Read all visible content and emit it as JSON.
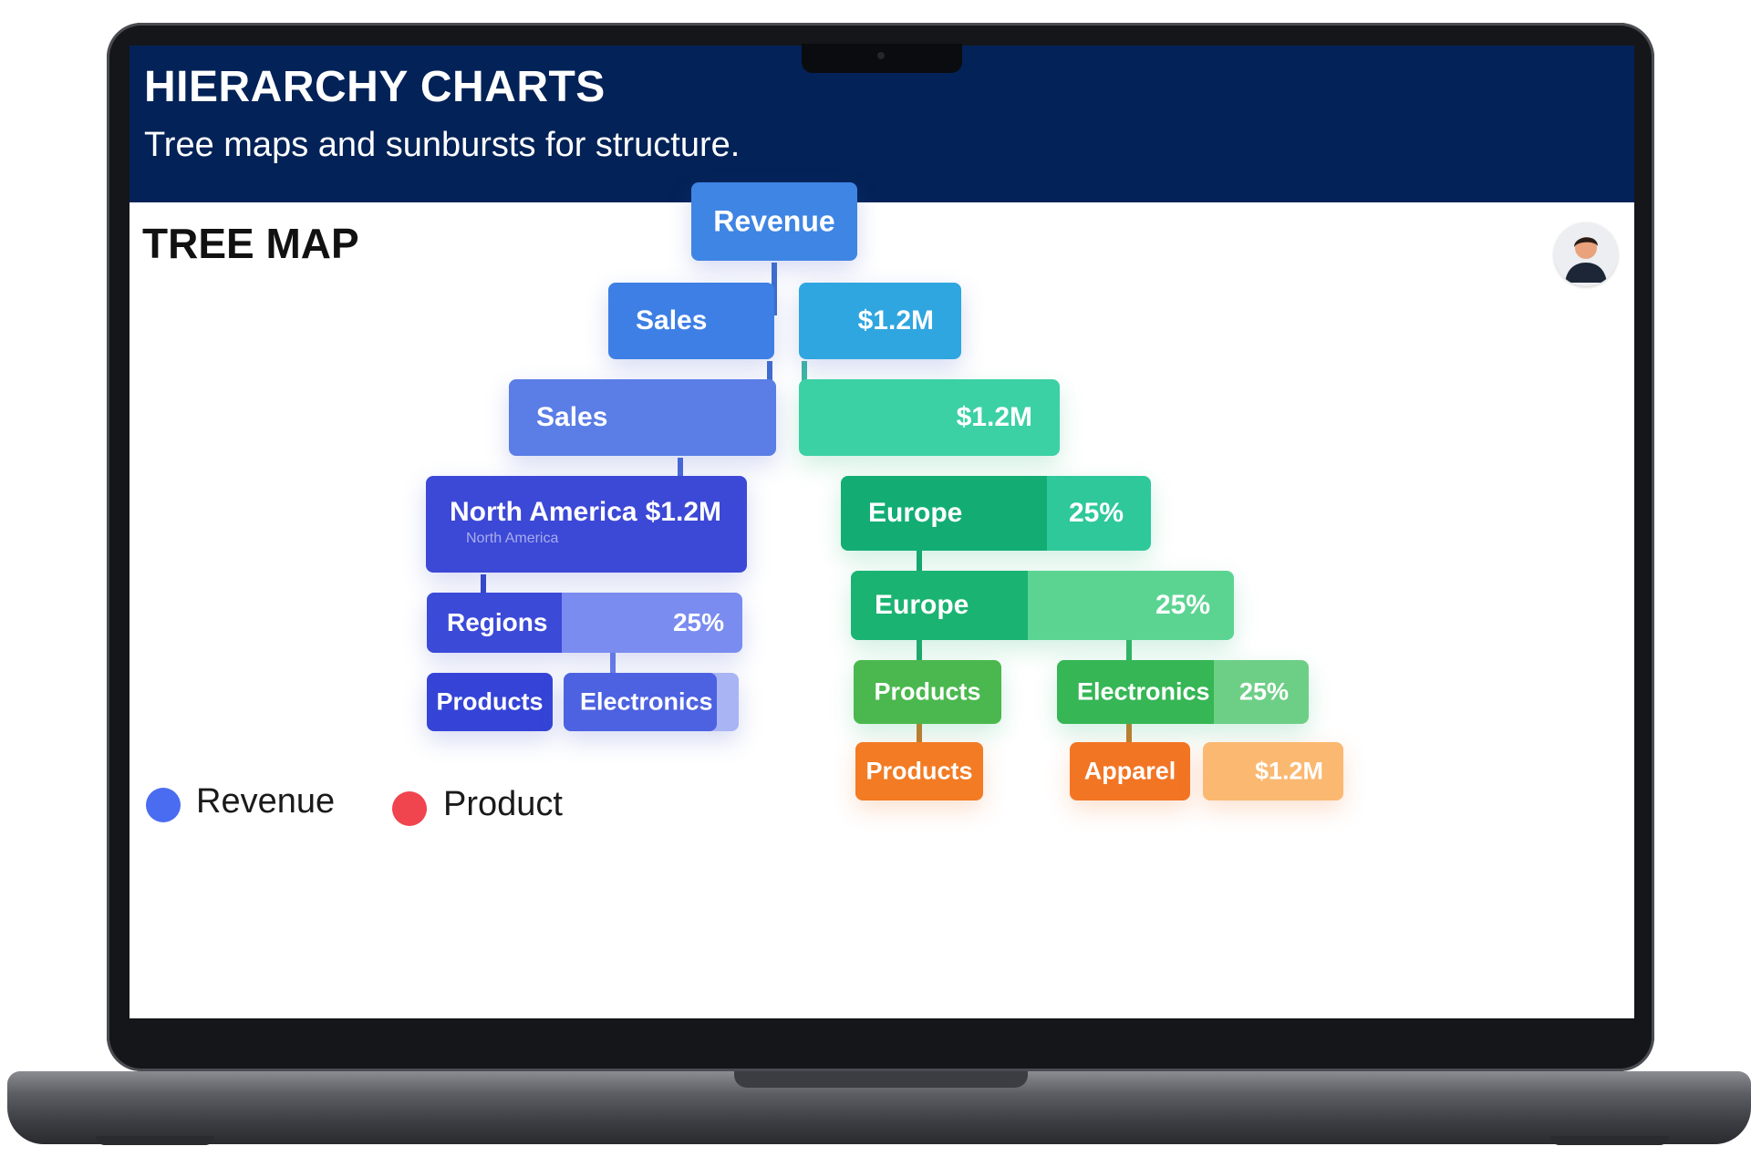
{
  "header": {
    "title": "HIERARCHY CHARTS",
    "subtitle": "Tree maps and sunbursts for structure."
  },
  "section": {
    "title": "TREE MAP"
  },
  "avatar": {
    "icon": "user-avatar-icon"
  },
  "tree": {
    "revenue": "Revenue",
    "sales_1": "Sales",
    "value_1": "$1.2M",
    "sales_2": "Sales",
    "value_2": "$1.2M",
    "north_america": {
      "label": "North America",
      "value": "$1.2M",
      "sub": "North America"
    },
    "regions": {
      "label": "Regions",
      "value": "25%"
    },
    "products_blue": "Products",
    "electronics_blue": "Electronics",
    "europe_1": {
      "label": "Europe",
      "value": "25%"
    },
    "europe_2": {
      "label": "Europe",
      "value": "25%"
    },
    "products_green": "Products",
    "electronics_green": {
      "label": "Electronics",
      "value": "25%"
    },
    "products_orange": "Products",
    "apparel": "Apparel",
    "apparel_value": "$1.2M"
  },
  "legend": [
    {
      "label": "Revenue",
      "color": "#4a6cf0"
    },
    {
      "label": "Product",
      "color": "#f0444e"
    }
  ],
  "colors": {
    "header_bg": "#032257",
    "blue": "#3f85e3",
    "indigo": "#3c48d6",
    "teal": "#35c9a3",
    "green": "#16b278",
    "lime": "#4ab84e",
    "orange": "#f27b24"
  }
}
